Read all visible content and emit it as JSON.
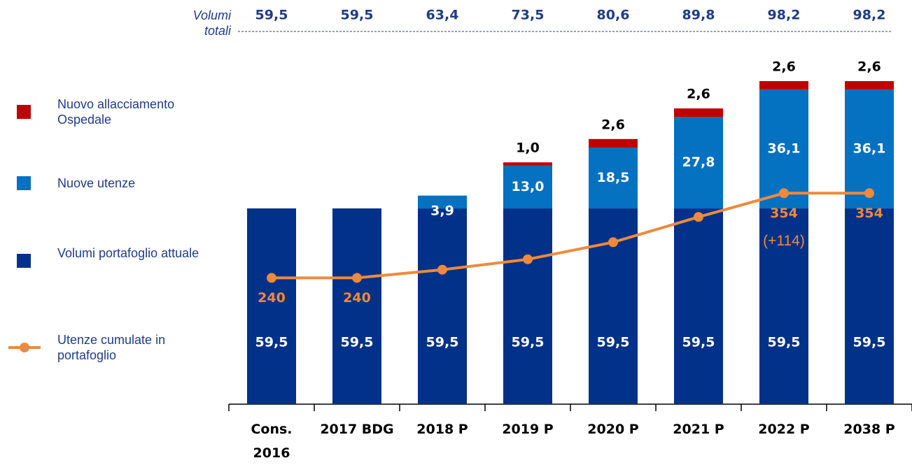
{
  "chart_data": {
    "type": "bar",
    "stacked": true,
    "categories": [
      "Cons. 2016",
      "2017 BDG",
      "2018 P",
      "2019 P",
      "2020 P",
      "2021 P",
      "2022 P",
      "2038 P"
    ],
    "series": [
      {
        "name": "Volumi portafoglio attuale",
        "color": "#023189",
        "values": [
          59.5,
          59.5,
          59.5,
          59.5,
          59.5,
          59.5,
          59.5,
          59.5
        ],
        "value_labels": [
          "59,5",
          "59,5",
          "59,5",
          "59,5",
          "59,5",
          "59,5",
          "59,5",
          "59,5"
        ]
      },
      {
        "name": "Nuove utenze",
        "color": "#0471c1",
        "values": [
          null,
          null,
          3.9,
          13.0,
          18.5,
          27.8,
          36.1,
          36.1
        ],
        "value_labels": [
          null,
          null,
          "3,9",
          "13,0",
          "18,5",
          "27,8",
          "36,1",
          "36,1"
        ]
      },
      {
        "name": "Nuovo allacciamento Ospedale",
        "color": "#c00000",
        "values": [
          null,
          null,
          null,
          1.0,
          2.6,
          2.6,
          2.6,
          2.6
        ],
        "value_labels": [
          null,
          null,
          null,
          "1,0",
          "2,6",
          "2,6",
          "2,6",
          "2,6"
        ]
      },
      {
        "name": "Utenze cumulate in portafoglio",
        "type": "line",
        "axis": "y2",
        "color": "#ef8a3a",
        "values": [
          240,
          240,
          251,
          265,
          288,
          322,
          354,
          354
        ],
        "value_labels": [
          "240",
          "240",
          null,
          null,
          null,
          null,
          "354",
          "354"
        ]
      }
    ],
    "totals": {
      "label": "Volumi totali",
      "values": [
        59.5,
        59.5,
        63.4,
        73.5,
        80.6,
        89.8,
        98.2,
        98.2
      ],
      "value_labels": [
        "59,5",
        "59,5",
        "63,4",
        "73,5",
        "80,6",
        "89,8",
        "98,2",
        "98,2"
      ]
    },
    "annotations": [
      {
        "text": "(+114)",
        "category": "2022 P"
      }
    ],
    "ylim": [
      0,
      105
    ],
    "y2lim": [
      70,
      535
    ],
    "legend": "left"
  }
}
